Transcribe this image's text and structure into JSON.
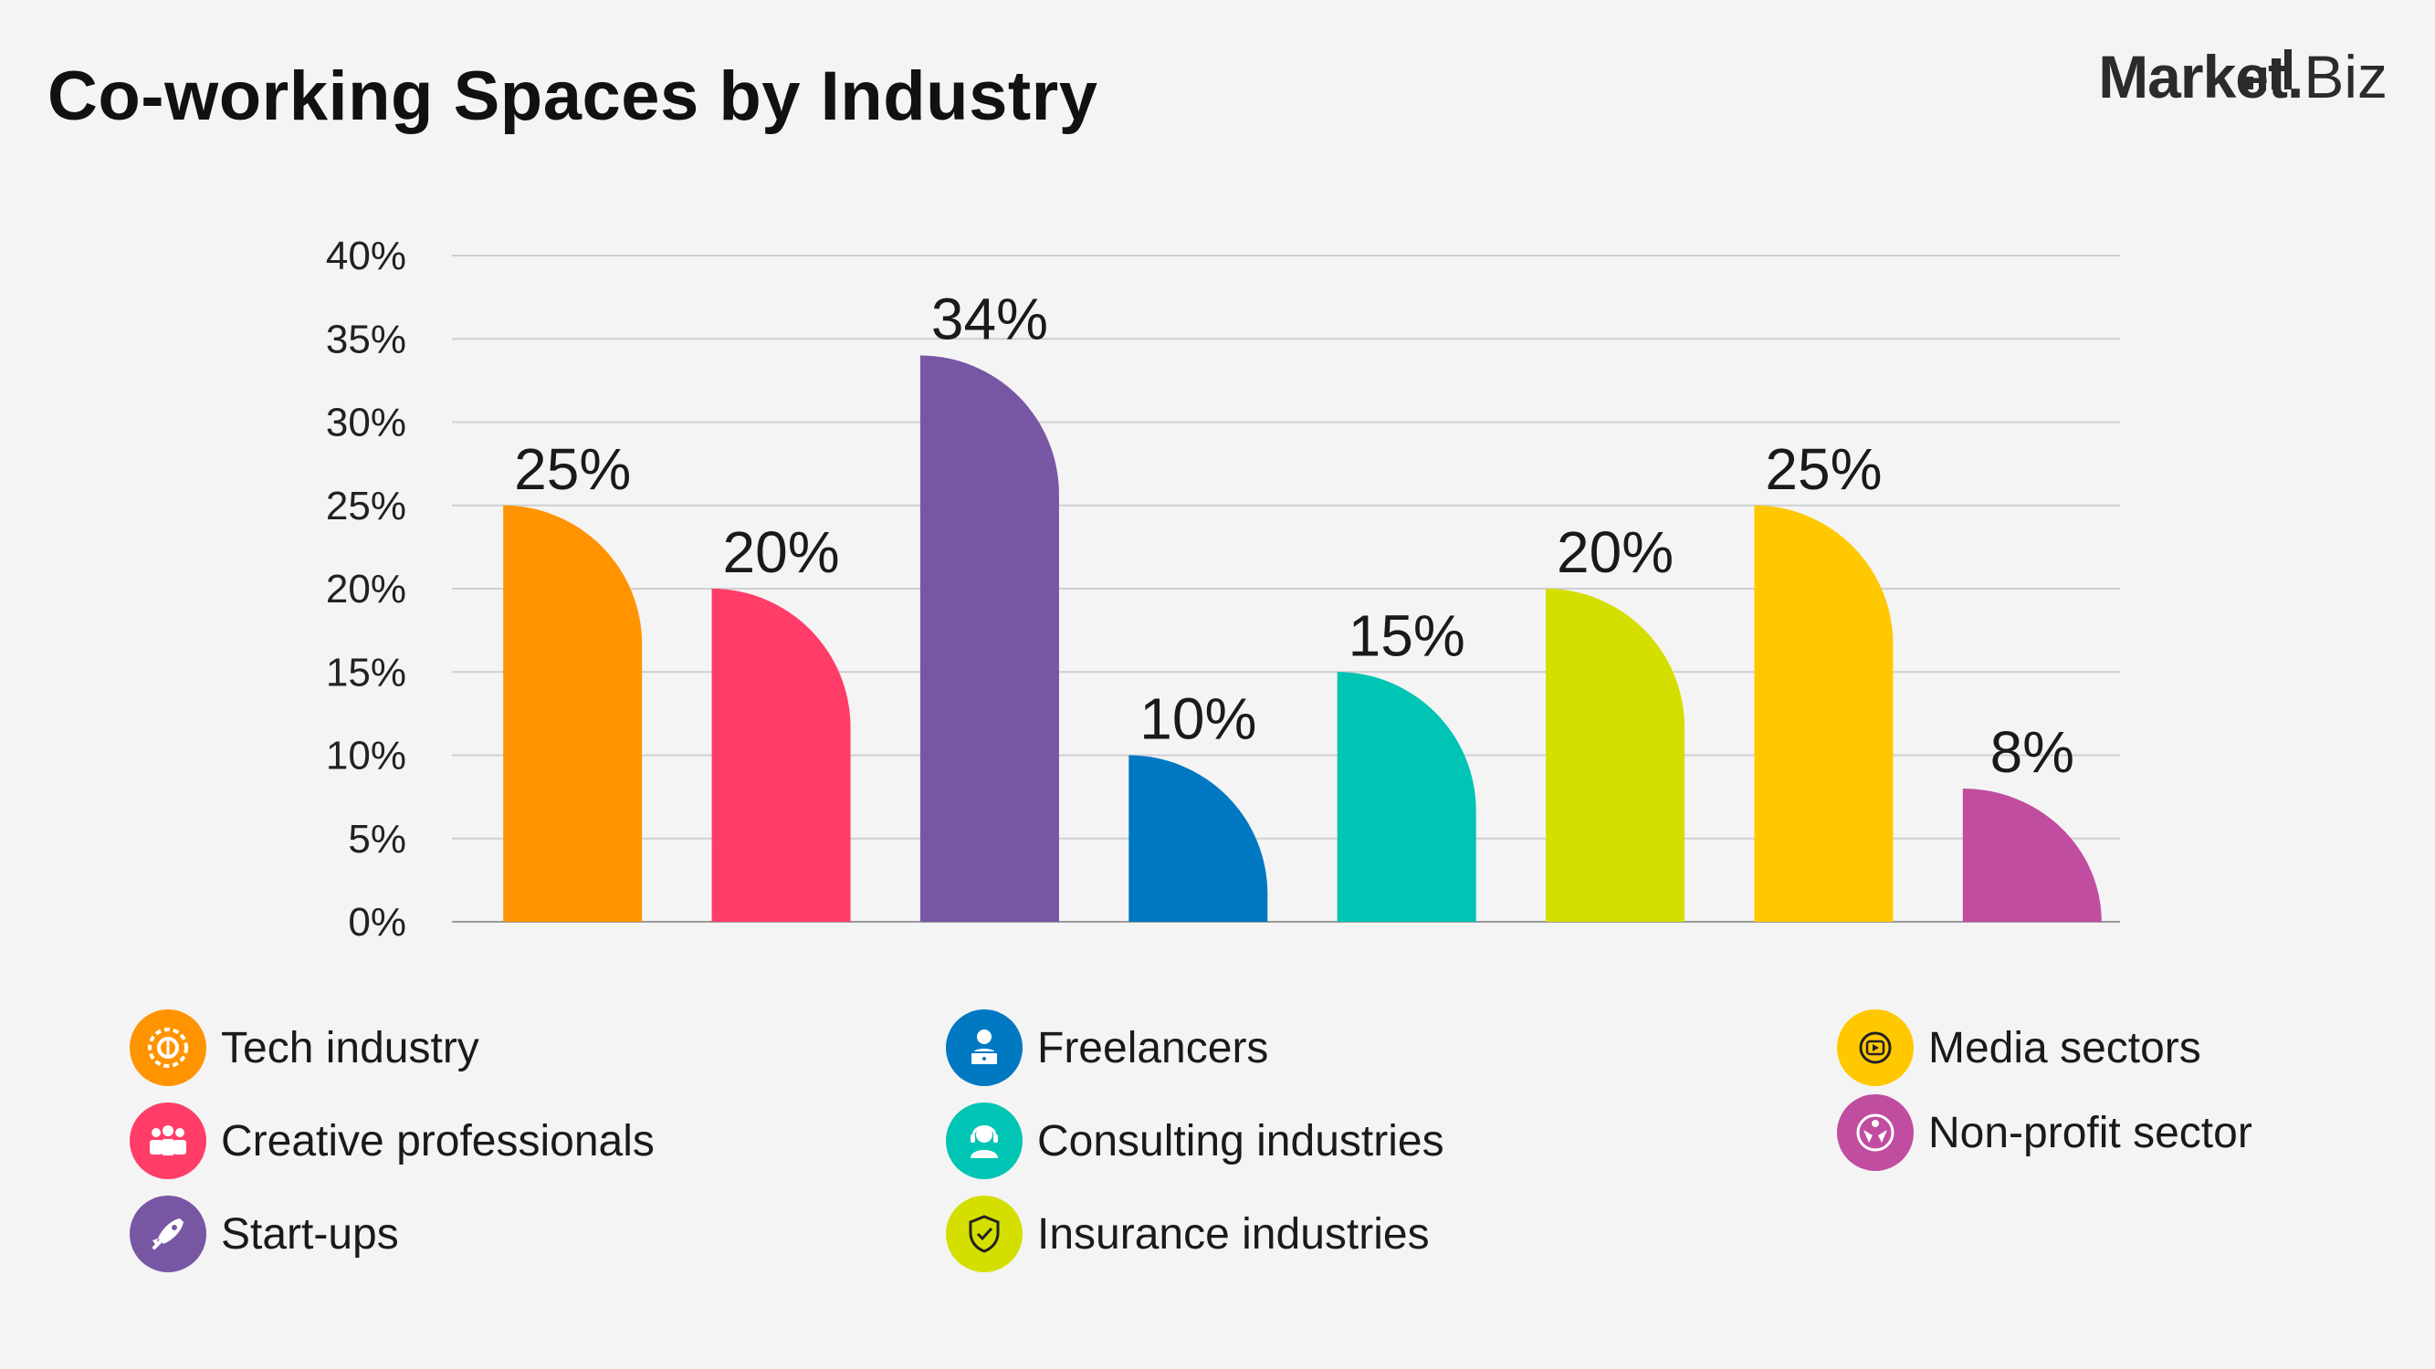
{
  "header": {
    "title": "Co-working Spaces by Industry",
    "brand_primary": "Market",
    "brand_dot": ".",
    "brand_secondary": "Biz"
  },
  "chart_data": {
    "type": "bar",
    "title": "Co-working Spaces by Industry",
    "categories": [
      "Tech industry",
      "Creative professionals",
      "Start-ups",
      "Freelancers",
      "Consulting industries",
      "Insurance industries",
      "Media sectors",
      "Non-profit sector"
    ],
    "values": [
      25,
      20,
      34,
      10,
      15,
      20,
      25,
      8
    ],
    "value_labels": [
      "25%",
      "20%",
      "34%",
      "10%",
      "15%",
      "20%",
      "25%",
      "8%"
    ],
    "colors": [
      "#ff9400",
      "#ff3d68",
      "#7757a4",
      "#0078c2",
      "#00c4b4",
      "#d4df00",
      "#ffc800",
      "#c04da0"
    ],
    "ylim": [
      0,
      40
    ],
    "yticks": [
      "0%",
      "5%",
      "10%",
      "15%",
      "20%",
      "25%",
      "30%",
      "35%",
      "40%"
    ],
    "grid": true,
    "legend_position": "bottom",
    "xlabel": "",
    "ylabel": ""
  },
  "legend": [
    {
      "label": "Tech industry",
      "icon": "gear-icon",
      "color": "#ff9400"
    },
    {
      "label": "Creative professionals",
      "icon": "people-icon",
      "color": "#ff3d68"
    },
    {
      "label": "Start-ups",
      "icon": "rocket-icon",
      "color": "#7757a4"
    },
    {
      "label": "Freelancers",
      "icon": "laptop-user-icon",
      "color": "#0078c2"
    },
    {
      "label": "Consulting industries",
      "icon": "headset-icon",
      "color": "#00c4b4"
    },
    {
      "label": "Insurance industries",
      "icon": "shield-icon",
      "color": "#d4df00"
    },
    {
      "label": "Media sectors",
      "icon": "play-icon",
      "color": "#ffc800"
    },
    {
      "label": "Non-profit sector",
      "icon": "hands-icon",
      "color": "#c04da0"
    }
  ]
}
